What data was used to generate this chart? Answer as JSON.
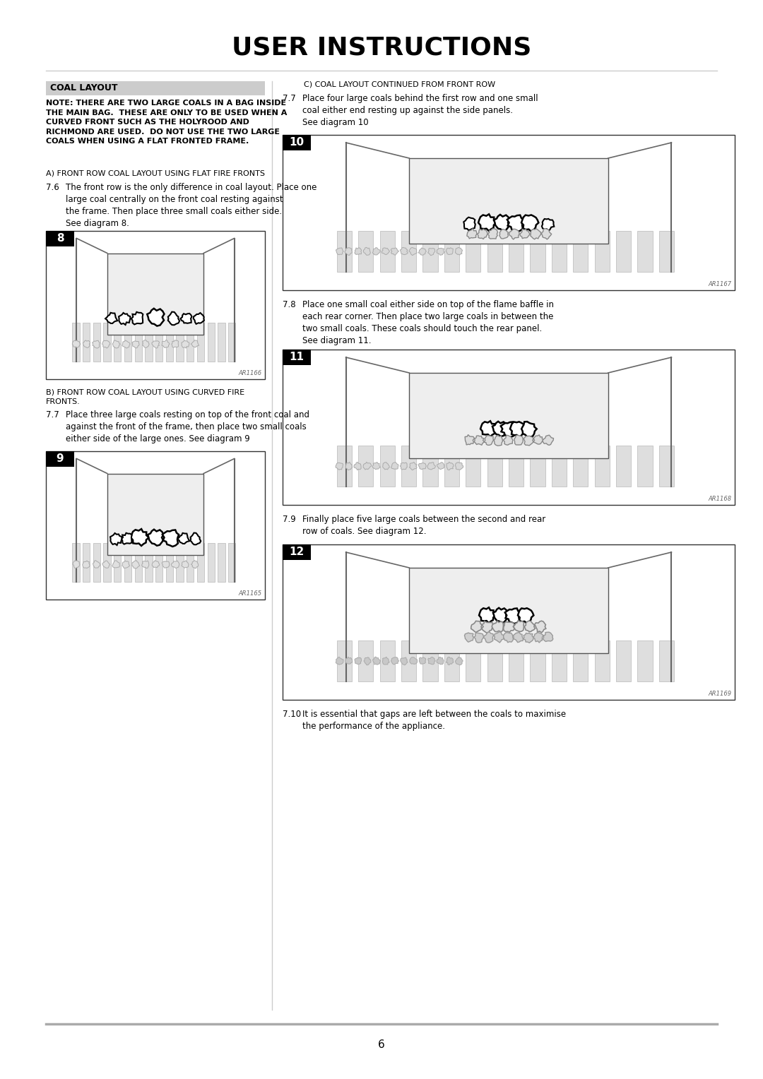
{
  "title": "USER INSTRUCTIONS",
  "page_number": "6",
  "bg_color": "#ffffff",
  "section_header": "COAL LAYOUT",
  "section_header_bg": "#cccccc",
  "note_text": "NOTE: THERE ARE TWO LARGE COALS IN A BAG INSIDE\nTHE MAIN BAG.  THESE ARE ONLY TO BE USED WHEN A\nCURVED FRONT SUCH AS THE HOLYROOD AND\nRICHMOND ARE USED.  DO NOT USE THE TWO LARGE\nCOALS WHEN USING A FLAT FRONTED FRAME.",
  "section_a": "A) FRONT ROW COAL LAYOUT USING FLAT FIRE FRONTS",
  "step_76": "7.6",
  "step_76_text": "The front row is the only difference in coal layout. Place one\nlarge coal centrally on the front coal resting against\nthe frame. Then place three small coals either side.\nSee diagram 8.",
  "diagram_8_label": "8",
  "diagram_8_ref": "AR1166",
  "section_b": "B) FRONT ROW COAL LAYOUT USING CURVED FIRE\nFRONTS.",
  "step_77a": "7.7",
  "step_77a_text": "Place three large coals resting on top of the front coal and\nagainst the front of the frame, then place two small coals\neither side of the large ones. See diagram 9",
  "diagram_9_label": "9",
  "diagram_9_ref": "AR1165",
  "section_c": "C) COAL LAYOUT CONTINUED FROM FRONT ROW",
  "step_77b": "7.7",
  "step_77b_text": "Place four large coals behind the first row and one small\ncoal either end resting up against the side panels.\nSee diagram 10",
  "diagram_10_label": "10",
  "diagram_10_ref": "AR1167",
  "step_78": "7.8",
  "step_78_text": "Place one small coal either side on top of the flame baffle in\neach rear corner. Then place two large coals in between the\ntwo small coals. These coals should touch the rear panel.\nSee diagram 11.",
  "diagram_11_label": "11",
  "diagram_11_ref": "AR1168",
  "step_79": "7.9",
  "step_79_text": "Finally place five large coals between the second and rear\nrow of coals. See diagram 12.",
  "diagram_12_label": "12",
  "diagram_12_ref": "AR1169",
  "step_710": "7.10",
  "step_710_text": "It is essential that gaps are left between the coals to maximise\nthe performance of the appliance.",
  "divider_color": "#aaaaaa",
  "text_color": "#000000",
  "box_border_color": "#000000",
  "diagram_label_bg": "#000000",
  "diagram_label_color": "#ffffff"
}
